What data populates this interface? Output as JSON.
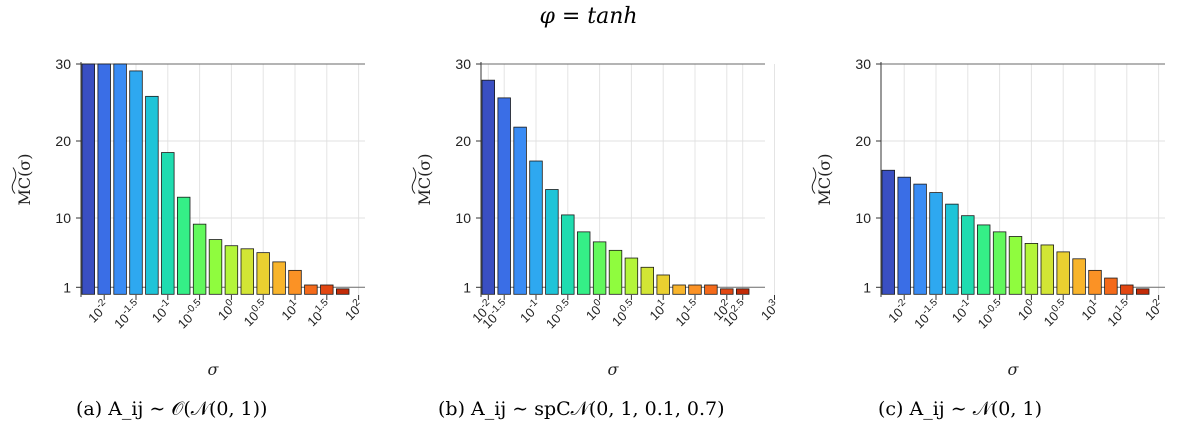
{
  "figure_title": "φ = tanh",
  "chart_data": [
    {
      "type": "bar",
      "caption": "(a) A_ij ∼ 𝒪(𝒩(0, 1))",
      "xlabel": "σ",
      "ylabel": "MC(σ)",
      "ylim": [
        0,
        30
      ],
      "yticks": [
        1,
        10,
        20,
        30
      ],
      "xtick_labels": [
        "10^-2",
        "10^-1.5",
        "10^-1",
        "10^-0.5",
        "10^0",
        "10^0.5",
        "10^1",
        "10^1.5",
        "10^2"
      ],
      "xtick_bar_index": [
        1,
        3,
        5,
        7,
        9,
        11,
        13,
        15,
        17
      ],
      "values": [
        30,
        30,
        30,
        29.1,
        25.8,
        18.5,
        12.7,
        9.2,
        7.2,
        6.4,
        6.0,
        5.5,
        4.3,
        3.2,
        1.3,
        1.3,
        0.8
      ],
      "colors": [
        "#3a4fc2",
        "#3a6ee6",
        "#3a8cf5",
        "#2ea8f0",
        "#1ec4d8",
        "#1fdcb0",
        "#35ef87",
        "#62f85c",
        "#8ffc3e",
        "#b4f53a",
        "#d2e535",
        "#ead030",
        "#f8b52c",
        "#fb9225",
        "#f46a1b",
        "#e24712",
        "#c32b07"
      ]
    },
    {
      "type": "bar",
      "caption": "(b) A_ij ∼ spC𝒩(0, 1, 0.1, 0.7)",
      "xlabel": "σ",
      "ylabel": "MC(σ)",
      "ylim": [
        0,
        30
      ],
      "yticks": [
        1,
        10,
        20,
        30
      ],
      "xtick_labels": [
        "10^-2",
        "10^-1.5",
        "10^-1",
        "10^-0.5",
        "10^0",
        "10^0.5",
        "10^1",
        "10^1.5",
        "10^2",
        "10^2.5",
        "10^3"
      ],
      "xtick_bar_index": [
        0,
        1,
        3,
        5,
        7,
        9,
        11,
        13,
        15,
        16,
        18
      ],
      "values": [
        27.9,
        25.6,
        21.8,
        17.4,
        13.7,
        10.4,
        8.2,
        6.9,
        5.8,
        4.8,
        3.6,
        2.6,
        1.3,
        1.3,
        1.3,
        0.8,
        0.8
      ],
      "colors": [
        "#3a4fc2",
        "#3a6ee6",
        "#3a8cf5",
        "#2ea8f0",
        "#1ec4d8",
        "#1fdcb0",
        "#35ef87",
        "#62f85c",
        "#8ffc3e",
        "#b4f53a",
        "#d2e535",
        "#ead030",
        "#f8b52c",
        "#fb9225",
        "#f46a1b",
        "#e24712",
        "#c32b07"
      ]
    },
    {
      "type": "bar",
      "caption": "(c) A_ij ∼ 𝒩(0, 1)",
      "xlabel": "σ",
      "ylabel": "MC(σ)",
      "ylim": [
        0,
        30
      ],
      "yticks": [
        1,
        10,
        20,
        30
      ],
      "xtick_labels": [
        "10^-2",
        "10^-1.5",
        "10^-1",
        "10^-0.5",
        "10^0",
        "10^0.5",
        "10^1",
        "10^1.5",
        "10^2"
      ],
      "xtick_bar_index": [
        1,
        3,
        5,
        7,
        9,
        11,
        13,
        15,
        17
      ],
      "values": [
        16.2,
        15.3,
        14.4,
        13.3,
        11.8,
        10.3,
        9.1,
        8.2,
        7.6,
        6.7,
        6.5,
        5.6,
        4.7,
        3.2,
        2.2,
        1.3,
        0.8
      ],
      "colors": [
        "#3a4fc2",
        "#3a6ee6",
        "#3a8cf5",
        "#2ea8f0",
        "#1ec4d8",
        "#1fdcb0",
        "#35ef87",
        "#62f85c",
        "#8ffc3e",
        "#b4f53a",
        "#d2e535",
        "#ead030",
        "#f8b52c",
        "#fb9225",
        "#f46a1b",
        "#e24712",
        "#c32b07"
      ]
    }
  ]
}
